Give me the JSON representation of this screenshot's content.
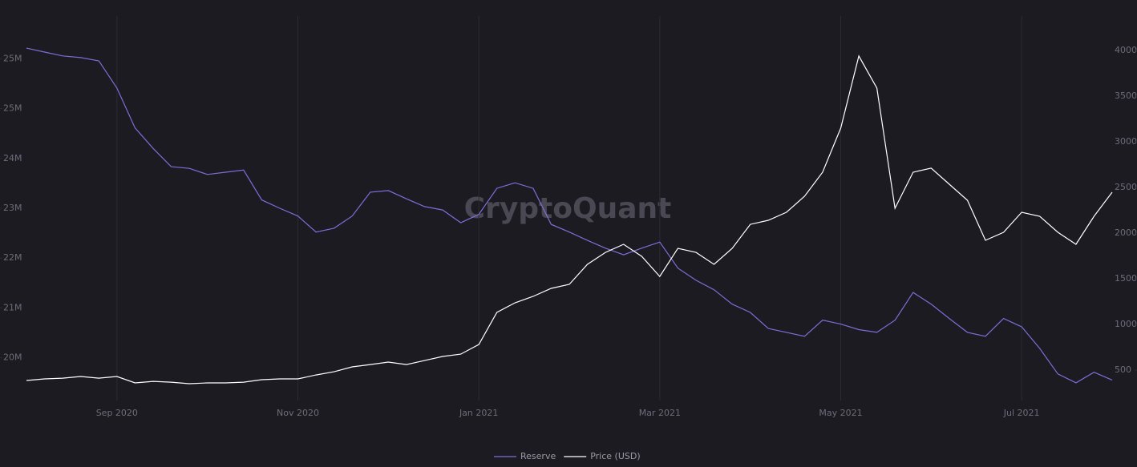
{
  "chart_data": {
    "type": "line",
    "watermark": "CryptoQuant",
    "categories": [
      null,
      null,
      null,
      null,
      null,
      "Sep 2020",
      null,
      null,
      null,
      null,
      null,
      null,
      null,
      null,
      null,
      "Nov 2020",
      null,
      null,
      null,
      null,
      null,
      null,
      null,
      null,
      null,
      "Jan 2021",
      null,
      null,
      null,
      null,
      null,
      null,
      null,
      null,
      null,
      "Mar 2021",
      null,
      null,
      null,
      null,
      null,
      null,
      null,
      null,
      null,
      "May 2021",
      null,
      null,
      null,
      null,
      null,
      null,
      null,
      null,
      null,
      "Jul 2021",
      null,
      null,
      null,
      null,
      null
    ],
    "series": [
      {
        "name": "Reserve",
        "color": "#7b6fd6",
        "axis": "y",
        "values": [
          25.59,
          25.52,
          25.45,
          25.42,
          25.36,
          24.87,
          24.15,
          23.78,
          23.45,
          23.42,
          23.31,
          23.35,
          23.39,
          22.85,
          22.7,
          22.56,
          22.27,
          22.34,
          22.56,
          22.99,
          23.02,
          22.87,
          22.73,
          22.67,
          22.44,
          22.59,
          23.06,
          23.16,
          23.06,
          22.41,
          22.27,
          22.12,
          21.98,
          21.86,
          21.98,
          22.09,
          21.62,
          21.4,
          21.23,
          20.97,
          20.82,
          20.53,
          20.46,
          20.39,
          20.68,
          20.61,
          20.51,
          20.46,
          20.68,
          21.18,
          20.97,
          20.71,
          20.46,
          20.39,
          20.71,
          20.56,
          20.17,
          19.71,
          19.55,
          19.74,
          19.6
        ]
      },
      {
        "name": "Price (USD)",
        "color": "#ffffff",
        "axis": "y2",
        "values": [
          386,
          404,
          412,
          430,
          412,
          430,
          360,
          377,
          368,
          351,
          360,
          360,
          368,
          395,
          404,
          404,
          447,
          482,
          535,
          561,
          588,
          561,
          605,
          649,
          675,
          781,
          1132,
          1237,
          1307,
          1395,
          1439,
          1658,
          1789,
          1877,
          1746,
          1526,
          1833,
          1789,
          1658,
          1833,
          2096,
          2140,
          2228,
          2404,
          2667,
          3149,
          3939,
          3588,
          2272,
          2667,
          2711,
          2535,
          2360,
          1921,
          2009,
          2228,
          2184,
          2009,
          1877,
          2184,
          2447
        ]
      }
    ],
    "ylim": [
      19.23,
      26.17
    ],
    "yticks": [
      {
        "value": 20.0,
        "label": "20M"
      },
      {
        "value": 20.9,
        "label": "21M"
      },
      {
        "value": 21.8,
        "label": "22M"
      },
      {
        "value": 22.7,
        "label": "23M"
      },
      {
        "value": 23.6,
        "label": "24M"
      },
      {
        "value": 24.5,
        "label": "25M"
      },
      {
        "value": 25.4,
        "label": "25M"
      }
    ],
    "y2lim": [
      167,
      4377
    ],
    "y2ticks": [
      500,
      1000,
      1500,
      2000,
      2500,
      3000,
      3500,
      4000
    ],
    "legend": "bottom"
  }
}
